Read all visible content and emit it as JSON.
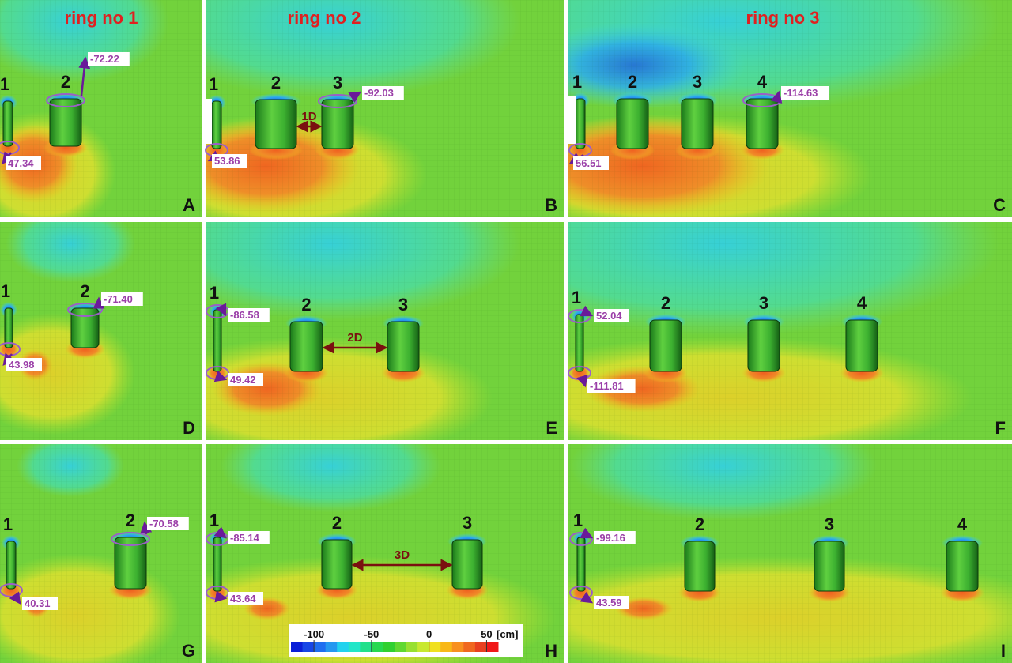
{
  "colors": {
    "background_green": "#6fd23a",
    "scour_blue": "#1e5fe0",
    "deposition_orange": "#f07a28",
    "label_red": "#e02020",
    "callout_purple": "#9b3fa8",
    "spacing_arrow": "#7a1010"
  },
  "column_headers": [
    "ring no 1",
    "ring no 2",
    "ring no 3"
  ],
  "panels": [
    {
      "letter": "A",
      "piers": [
        "1",
        "2"
      ],
      "callouts": [
        "-72.22",
        "47.34"
      ],
      "spacing": ""
    },
    {
      "letter": "B",
      "piers": [
        "1",
        "2",
        "3"
      ],
      "callouts": [
        "-92.03",
        "53.86"
      ],
      "spacing": "1D"
    },
    {
      "letter": "C",
      "piers": [
        "1",
        "2",
        "3",
        "4"
      ],
      "callouts": [
        "-114.63",
        "56.51"
      ],
      "spacing": ""
    },
    {
      "letter": "D",
      "piers": [
        "1",
        "2"
      ],
      "callouts": [
        "-71.40",
        "43.98"
      ],
      "spacing": ""
    },
    {
      "letter": "E",
      "piers": [
        "1",
        "2",
        "3"
      ],
      "callouts": [
        "-86.58",
        "49.42"
      ],
      "spacing": "2D"
    },
    {
      "letter": "F",
      "piers": [
        "1",
        "2",
        "3",
        "4"
      ],
      "callouts": [
        "52.04",
        "-111.81"
      ],
      "spacing": ""
    },
    {
      "letter": "G",
      "piers": [
        "1",
        "2"
      ],
      "callouts": [
        "-70.58",
        "40.31"
      ],
      "spacing": ""
    },
    {
      "letter": "H",
      "piers": [
        "1",
        "2",
        "3"
      ],
      "callouts": [
        "-85.14",
        "43.64"
      ],
      "spacing": "3D"
    },
    {
      "letter": "I",
      "piers": [
        "1",
        "2",
        "3",
        "4"
      ],
      "callouts": [
        "-99.16",
        "43.59"
      ],
      "spacing": ""
    }
  ],
  "colorbar": {
    "ticks": [
      "-100",
      "-50",
      "0",
      "50"
    ],
    "unit": "[cm]",
    "range": [
      -120,
      60
    ],
    "colors": [
      "#0a1ed8",
      "#1746e6",
      "#1f6ef0",
      "#2598f0",
      "#22d2ee",
      "#22e6c8",
      "#22e08a",
      "#28d850",
      "#30d030",
      "#60d830",
      "#98e030",
      "#c8e830",
      "#f0e020",
      "#f8b818",
      "#f89020",
      "#f06820",
      "#e84020",
      "#f01818"
    ]
  }
}
